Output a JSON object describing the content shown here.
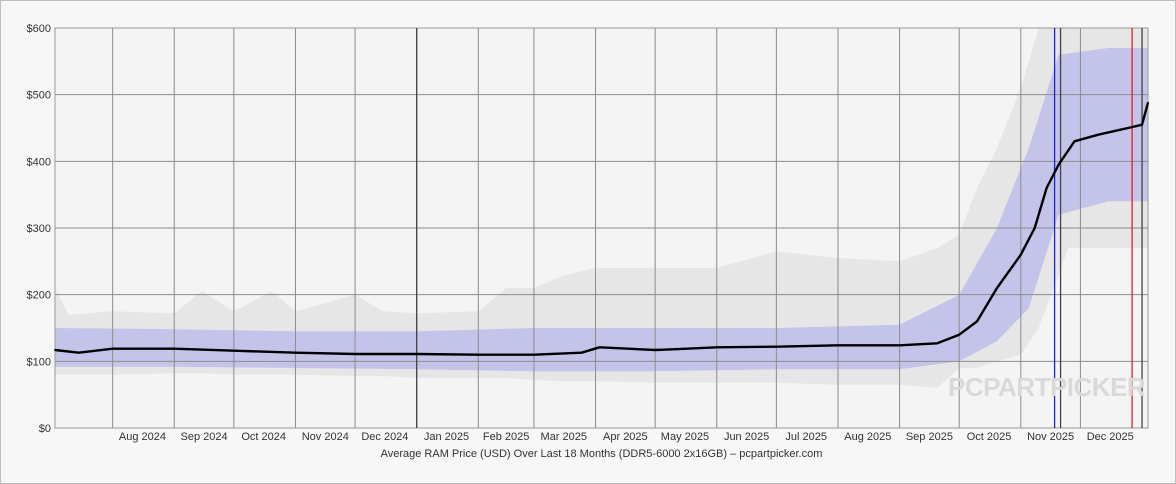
{
  "chart_data": {
    "type": "line",
    "title": "Average RAM Price (USD) Over Last 18 Months (DDR5-6000 2x16GB) – pcpartpicker.com",
    "xlabel": "",
    "ylabel": "",
    "ylim": [
      0,
      600
    ],
    "yticks": [
      {
        "value": 0,
        "label": "$0"
      },
      {
        "value": 100,
        "label": "$100"
      },
      {
        "value": 200,
        "label": "$200"
      },
      {
        "value": 300,
        "label": "$300"
      },
      {
        "value": 400,
        "label": "$400"
      },
      {
        "value": 500,
        "label": "$500"
      },
      {
        "value": 600,
        "label": "$600"
      }
    ],
    "xlim": [
      "2024-07-03",
      "2026-01-04"
    ],
    "xticks": [
      {
        "date": "2024-08-01",
        "label": "Aug 2024"
      },
      {
        "date": "2024-09-01",
        "label": "Sep 2024"
      },
      {
        "date": "2024-10-01",
        "label": "Oct 2024"
      },
      {
        "date": "2024-11-01",
        "label": "Nov 2024"
      },
      {
        "date": "2024-12-01",
        "label": "Dec 2024"
      },
      {
        "date": "2025-01-01",
        "label": "Jan 2025"
      },
      {
        "date": "2025-02-01",
        "label": "Feb 2025"
      },
      {
        "date": "2025-03-01",
        "label": "Mar 2025"
      },
      {
        "date": "2025-04-01",
        "label": "Apr 2025"
      },
      {
        "date": "2025-05-01",
        "label": "May 2025"
      },
      {
        "date": "2025-06-01",
        "label": "Jun 2025"
      },
      {
        "date": "2025-07-01",
        "label": "Jul 2025"
      },
      {
        "date": "2025-08-01",
        "label": "Aug 2025"
      },
      {
        "date": "2025-09-01",
        "label": "Sep 2025"
      },
      {
        "date": "2025-10-01",
        "label": "Oct 2025"
      },
      {
        "date": "2025-11-01",
        "label": "Nov 2025"
      },
      {
        "date": "2025-12-01",
        "label": "Dec 2025"
      }
    ],
    "grid": true,
    "vertical_markers": [
      {
        "date": "2025-01-01",
        "color": "#444444"
      },
      {
        "date": "2025-11-18",
        "color": "#2222cc"
      },
      {
        "date": "2025-11-21",
        "color": "#444444"
      },
      {
        "date": "2025-12-27",
        "color": "#dd2222"
      },
      {
        "date": "2026-01-01",
        "color": "#444444"
      }
    ],
    "series": [
      {
        "type": "band",
        "color": "#e6e6e6",
        "points": [
          {
            "x": "2024-07-03",
            "low": 80,
            "high": 210
          },
          {
            "x": "2024-07-10",
            "low": 80,
            "high": 170
          },
          {
            "x": "2024-08-01",
            "low": 80,
            "high": 175
          },
          {
            "x": "2024-09-01",
            "low": 82,
            "high": 172
          },
          {
            "x": "2024-09-15",
            "low": 82,
            "high": 205
          },
          {
            "x": "2024-10-01",
            "low": 80,
            "high": 175
          },
          {
            "x": "2024-10-20",
            "low": 80,
            "high": 205
          },
          {
            "x": "2024-11-01",
            "low": 80,
            "high": 175
          },
          {
            "x": "2024-12-01",
            "low": 78,
            "high": 200
          },
          {
            "x": "2024-12-15",
            "low": 78,
            "high": 175
          },
          {
            "x": "2025-01-01",
            "low": 75,
            "high": 172
          },
          {
            "x": "2025-02-01",
            "low": 75,
            "high": 175
          },
          {
            "x": "2025-02-15",
            "low": 75,
            "high": 210
          },
          {
            "x": "2025-03-01",
            "low": 72,
            "high": 210
          },
          {
            "x": "2025-03-15",
            "low": 70,
            "high": 228
          },
          {
            "x": "2025-04-01",
            "low": 70,
            "high": 240
          },
          {
            "x": "2025-05-01",
            "low": 68,
            "high": 240
          },
          {
            "x": "2025-06-01",
            "low": 68,
            "high": 240
          },
          {
            "x": "2025-07-01",
            "low": 68,
            "high": 265
          },
          {
            "x": "2025-08-01",
            "low": 65,
            "high": 255
          },
          {
            "x": "2025-09-01",
            "low": 65,
            "high": 250
          },
          {
            "x": "2025-09-20",
            "low": 60,
            "high": 270
          },
          {
            "x": "2025-10-01",
            "low": 90,
            "high": 290
          },
          {
            "x": "2025-10-10",
            "low": 90,
            "high": 360
          },
          {
            "x": "2025-10-20",
            "low": 100,
            "high": 420
          },
          {
            "x": "2025-11-01",
            "low": 110,
            "high": 510
          },
          {
            "x": "2025-11-10",
            "low": 150,
            "high": 600
          },
          {
            "x": "2025-11-25",
            "low": 270,
            "high": 600
          },
          {
            "x": "2025-12-15",
            "low": 270,
            "high": 600
          },
          {
            "x": "2026-01-04",
            "low": 270,
            "high": 600
          }
        ]
      },
      {
        "type": "band",
        "color": "#b8b8ec",
        "points": [
          {
            "x": "2024-07-03",
            "low": 92,
            "high": 150
          },
          {
            "x": "2024-09-01",
            "low": 92,
            "high": 148
          },
          {
            "x": "2024-11-01",
            "low": 90,
            "high": 145
          },
          {
            "x": "2025-01-01",
            "low": 88,
            "high": 145
          },
          {
            "x": "2025-03-01",
            "low": 85,
            "high": 150
          },
          {
            "x": "2025-05-01",
            "low": 85,
            "high": 150
          },
          {
            "x": "2025-07-01",
            "low": 88,
            "high": 150
          },
          {
            "x": "2025-09-01",
            "low": 88,
            "high": 155
          },
          {
            "x": "2025-10-01",
            "low": 100,
            "high": 200
          },
          {
            "x": "2025-10-20",
            "low": 130,
            "high": 300
          },
          {
            "x": "2025-11-05",
            "low": 180,
            "high": 420
          },
          {
            "x": "2025-11-20",
            "low": 320,
            "high": 560
          },
          {
            "x": "2025-12-15",
            "low": 340,
            "high": 570
          },
          {
            "x": "2026-01-04",
            "low": 340,
            "high": 570
          }
        ]
      },
      {
        "type": "line",
        "color": "#000000",
        "points": [
          {
            "x": "2024-07-03",
            "y": 117
          },
          {
            "x": "2024-07-15",
            "y": 113
          },
          {
            "x": "2024-08-01",
            "y": 119
          },
          {
            "x": "2024-09-01",
            "y": 119
          },
          {
            "x": "2024-10-01",
            "y": 116
          },
          {
            "x": "2024-11-01",
            "y": 113
          },
          {
            "x": "2024-12-01",
            "y": 111
          },
          {
            "x": "2025-01-01",
            "y": 111
          },
          {
            "x": "2025-02-01",
            "y": 110
          },
          {
            "x": "2025-03-01",
            "y": 110
          },
          {
            "x": "2025-03-25",
            "y": 113
          },
          {
            "x": "2025-04-03",
            "y": 121
          },
          {
            "x": "2025-05-01",
            "y": 117
          },
          {
            "x": "2025-05-10",
            "y": 118
          },
          {
            "x": "2025-06-01",
            "y": 121
          },
          {
            "x": "2025-07-01",
            "y": 122
          },
          {
            "x": "2025-08-01",
            "y": 124
          },
          {
            "x": "2025-09-01",
            "y": 124
          },
          {
            "x": "2025-09-20",
            "y": 127
          },
          {
            "x": "2025-10-01",
            "y": 140
          },
          {
            "x": "2025-10-10",
            "y": 160
          },
          {
            "x": "2025-10-20",
            "y": 210
          },
          {
            "x": "2025-11-01",
            "y": 260
          },
          {
            "x": "2025-11-08",
            "y": 300
          },
          {
            "x": "2025-11-14",
            "y": 360
          },
          {
            "x": "2025-11-20",
            "y": 395
          },
          {
            "x": "2025-11-28",
            "y": 430
          },
          {
            "x": "2025-12-10",
            "y": 440
          },
          {
            "x": "2025-12-25",
            "y": 450
          },
          {
            "x": "2026-01-01",
            "y": 455
          },
          {
            "x": "2026-01-04",
            "y": 488
          }
        ]
      }
    ],
    "watermark": "PCPARTPICKER"
  },
  "colors": {
    "background": "#f7f7f7",
    "plot_background": "#f4f4f4",
    "grid": "#8c8c8c",
    "band_outer": "#e6e6e6",
    "band_inner": "#b8b8ec",
    "line": "#000000"
  }
}
